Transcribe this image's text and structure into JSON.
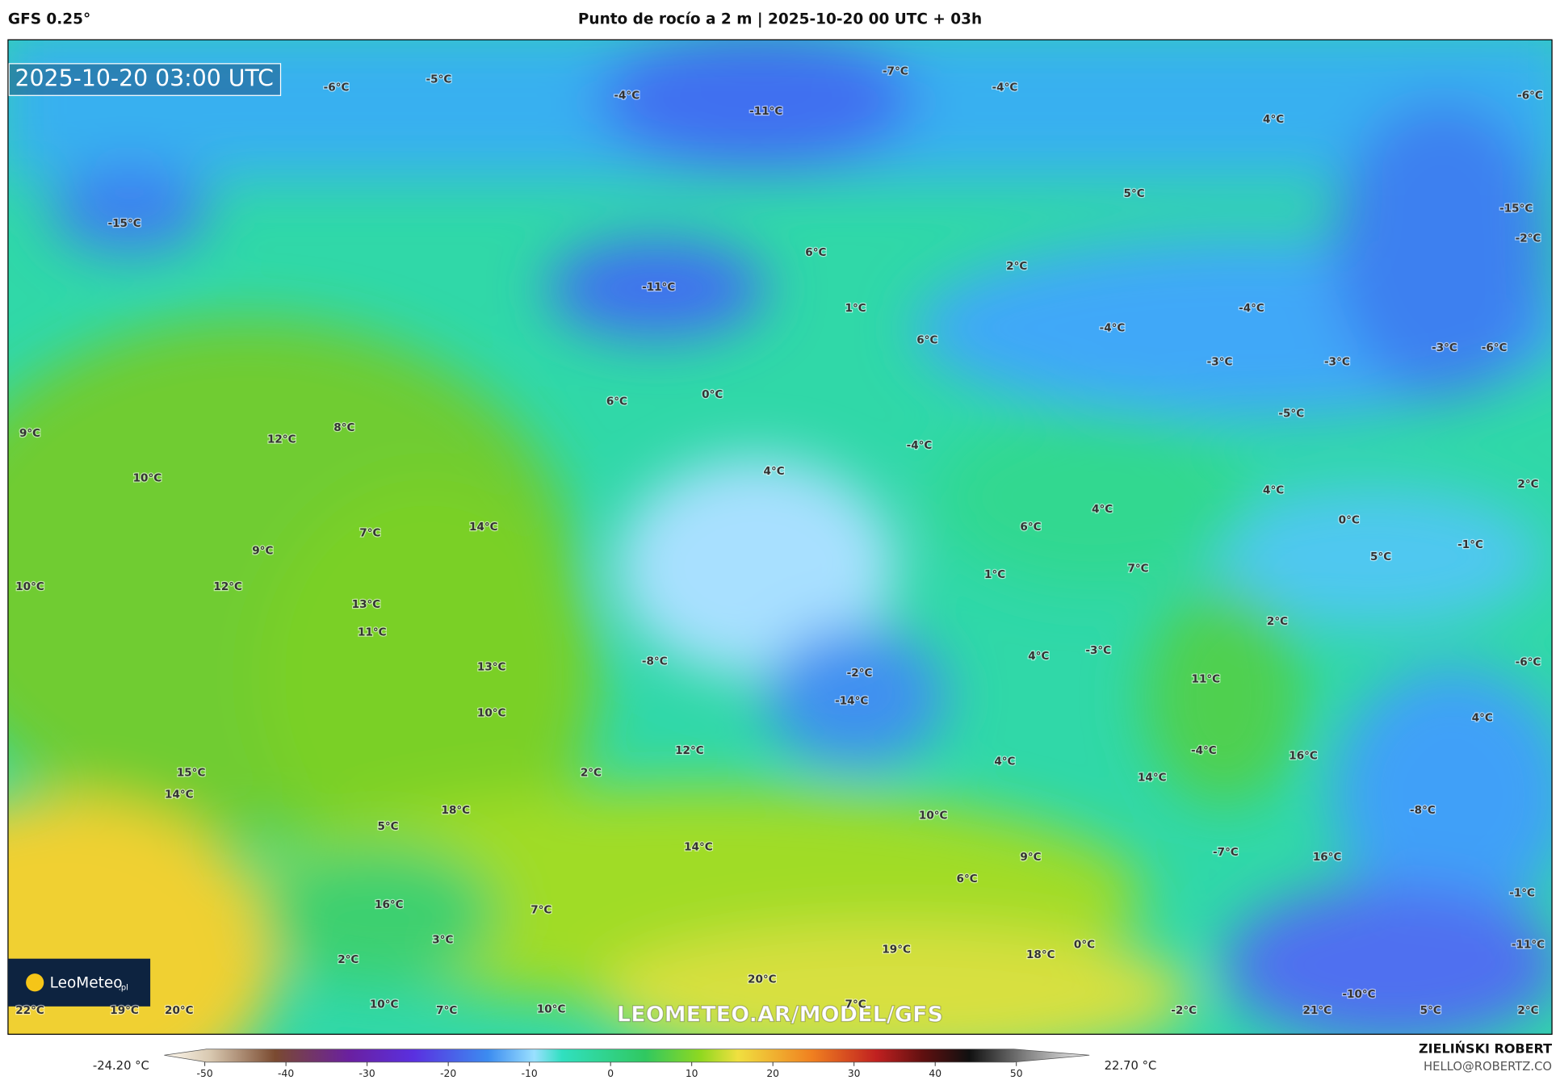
{
  "header": {
    "model": "GFS 0.25°",
    "title": "Punto de rocío a 2 m | 2025-10-20 00 UTC + 03h"
  },
  "timestamp": "2025-10-20 03:00 UTC",
  "watermark": "LEOMETEO.AR/MODEL/GFS",
  "logo": {
    "name": "LeoMeteo",
    "suffix": ".pl"
  },
  "credits": {
    "author": "ZIELIŃSKI ROBERT",
    "email": "HELLO@ROBERTZ.CO"
  },
  "colorbar": {
    "min_label": "-24.20 °C",
    "max_label": "22.70 °C",
    "lim": [
      -55,
      59
    ],
    "ticks": [
      -50,
      -40,
      -30,
      -20,
      -10,
      0,
      10,
      20,
      30,
      40,
      50
    ]
  },
  "map_labels": [
    "-6°C",
    "-5°C",
    "-4°C",
    "-7°C",
    "-4°C",
    "-6°C",
    "-11°C",
    "4°C",
    "-15°C",
    "5°C",
    "-15°C",
    "-2°C",
    "6°C",
    "2°C",
    "-11°C",
    "1°C",
    "-4°C",
    "-4°C",
    "6°C",
    "-3°C",
    "-3°C",
    "-3°C",
    "-6°C",
    "0°C",
    "6°C",
    "-5°C",
    "9°C",
    "12°C",
    "8°C",
    "-4°C",
    "10°C",
    "4°C",
    "4°C",
    "2°C",
    "4°C",
    "0°C",
    "14°C",
    "6°C",
    "7°C",
    "-1°C",
    "9°C",
    "5°C",
    "7°C",
    "1°C",
    "10°C",
    "12°C",
    "13°C",
    "2°C",
    "11°C",
    "4°C",
    "-3°C",
    "-6°C",
    "13°C",
    "-8°C",
    "-2°C",
    "11°C",
    "10°C",
    "-14°C",
    "4°C",
    "12°C",
    "-4°C",
    "16°C",
    "4°C",
    "15°C",
    "2°C",
    "14°C",
    "14°C",
    "18°C",
    "-8°C",
    "10°C",
    "5°C",
    "14°C",
    "-7°C",
    "9°C",
    "16°C",
    "6°C",
    "-1°C",
    "16°C",
    "7°C",
    "3°C",
    "0°C",
    "-11°C",
    "19°C",
    "18°C",
    "2°C",
    "20°C",
    "-10°C",
    "22°C",
    "19°C",
    "20°C",
    "10°C",
    "7°C",
    "10°C",
    "7°C",
    "-2°C",
    "21°C",
    "5°C",
    "2°C"
  ]
}
